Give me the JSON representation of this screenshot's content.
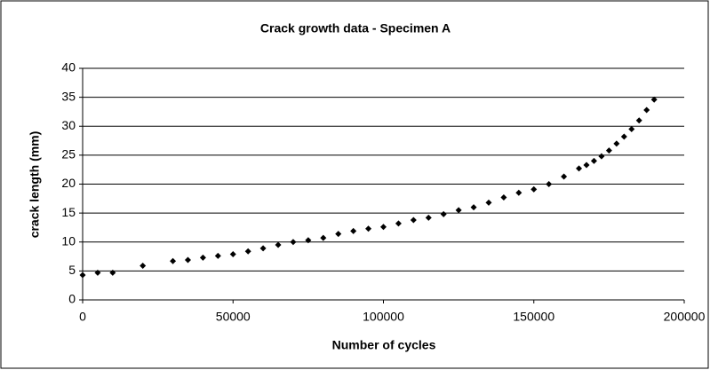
{
  "chart_data": {
    "type": "scatter",
    "title": "Crack growth data - Specimen A",
    "xlabel": "Number of cycles",
    "ylabel": "crack length (mm)",
    "series": [
      {
        "name": "Specimen A",
        "color": "#000000",
        "x": [
          0,
          5000,
          10000,
          20000,
          30000,
          35000,
          40000,
          45000,
          50000,
          55000,
          60000,
          65000,
          70000,
          75000,
          80000,
          85000,
          90000,
          95000,
          100000,
          105000,
          110000,
          115000,
          120000,
          125000,
          130000,
          135000,
          140000,
          145000,
          150000,
          155000,
          160000,
          165000,
          167500,
          170000,
          172500,
          175000,
          177500,
          180000,
          182500,
          185000,
          187500,
          190000
        ],
        "values": [
          4.3,
          4.7,
          4.7,
          5.9,
          6.7,
          6.9,
          7.3,
          7.6,
          7.9,
          8.4,
          8.9,
          9.5,
          10.0,
          10.3,
          10.7,
          11.4,
          11.9,
          12.3,
          12.6,
          13.2,
          13.8,
          14.2,
          14.8,
          15.5,
          16.0,
          16.8,
          17.7,
          18.5,
          19.1,
          20.0,
          21.3,
          22.7,
          23.3,
          24.0,
          24.8,
          25.8,
          27.0,
          28.2,
          29.5,
          31.0,
          32.8,
          34.6
        ]
      }
    ],
    "xlim": [
      0,
      200000
    ],
    "xticks": [
      0,
      50000,
      100000,
      150000,
      200000
    ],
    "ylim": [
      0,
      40
    ],
    "yticks": [
      0,
      5,
      10,
      15,
      20,
      25,
      30,
      35,
      40
    ],
    "grid": true
  }
}
